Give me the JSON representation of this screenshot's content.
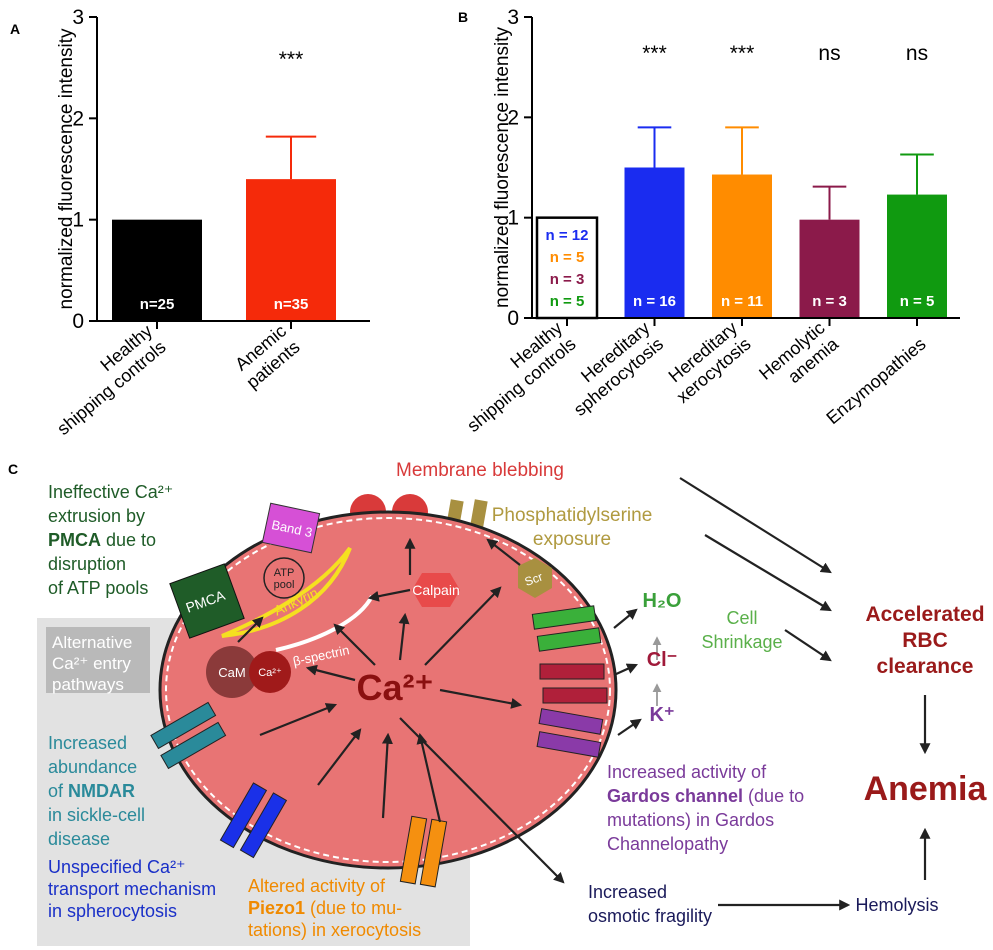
{
  "chart_data": [
    {
      "type": "bar",
      "panel": "A",
      "ylabel": "normalized fluorescence intensity",
      "categories": [
        "Healthy\nshipping controls",
        "Anemic\npatients"
      ],
      "values": [
        1.0,
        1.4
      ],
      "errors": [
        null,
        0.42
      ],
      "colors": [
        "#000000",
        "#f52a0a"
      ],
      "edgecolors": [
        null,
        null
      ],
      "n_labels": [
        "n=25",
        "n=35"
      ],
      "n_label_colors": [
        "#ffffff",
        "#ffffff"
      ],
      "significance": [
        null,
        "***"
      ],
      "ylim": [
        0,
        3
      ],
      "yticks": [
        0,
        1,
        2,
        3
      ]
    },
    {
      "type": "bar",
      "panel": "B",
      "ylabel": "normalized fluorescence intensity",
      "categories": [
        "Healthy\nshipping controls",
        "Hereditary\nspherocytosis",
        "Hereditary\nxerocytosis",
        "Hemolytic\nanemia",
        "Enzymopathies"
      ],
      "values": [
        1.0,
        1.5,
        1.43,
        0.98,
        1.23
      ],
      "errors": [
        null,
        0.4,
        0.47,
        0.33,
        0.4
      ],
      "colors": [
        "#ffffff",
        "#1a2cf0",
        "#ff8c00",
        "#8b1a4a",
        "#109a10"
      ],
      "edgecolors": [
        "#000000",
        null,
        null,
        null,
        null
      ],
      "n_labels": [
        [
          "n = 12",
          "n = 5",
          "n = 3",
          "n = 5"
        ],
        "n = 16",
        "n = 11",
        "n = 3",
        "n = 5"
      ],
      "n_label_colors": [
        [
          "#1a2cf0",
          "#ff8c00",
          "#8b1a4a",
          "#109a10"
        ],
        "#ffffff",
        "#ffffff",
        "#ffffff",
        "#ffffff"
      ],
      "significance": [
        null,
        "***",
        "***",
        "ns",
        "ns"
      ],
      "ylim": [
        0,
        3
      ],
      "yticks": [
        0,
        1,
        2,
        3
      ]
    }
  ],
  "diagram": {
    "texts": {
      "panel": [
        "C"
      ],
      "membrane_blebbing": [
        "Membrane blebbing"
      ],
      "ps_exposure": [
        "Phosphatidylserine",
        "exposure"
      ],
      "pmca_text": [
        "Ineffective Ca²⁺",
        "extrusion by",
        [
          {
            "bold": "PMCA"
          },
          " due to"
        ],
        "disruption",
        "of ATP pools"
      ],
      "alt_entry": [
        "Alternative",
        "Ca²⁺ entry",
        "pathways"
      ],
      "nmdar": [
        "Increased",
        "abundance",
        [
          "of ",
          {
            "bold": "NMDAR"
          }
        ],
        "in sickle-cell",
        "disease"
      ],
      "unspecified": [
        "Unspecified Ca²⁺",
        "transport mechanism",
        "in spherocytosis"
      ],
      "piezo": [
        "Altered activity of",
        [
          {
            "bold": "Piezo1"
          },
          " (due to mu-"
        ],
        "tations) in xerocytosis"
      ],
      "gardos": [
        "Increased activity of",
        [
          {
            "bold": "Gardos channel"
          },
          " (due to"
        ],
        "mutations) in Gardos",
        "Channelopathy"
      ],
      "h2o": [
        "H₂O"
      ],
      "cl": [
        "Cl⁻"
      ],
      "k": [
        "K⁺"
      ],
      "shrinkage": [
        "Cell",
        "Shrinkage"
      ],
      "clearance": [
        "Accelerated",
        "RBC",
        "clearance"
      ],
      "anemia": [
        "Anemia"
      ],
      "hemolysis": [
        "Hemolysis"
      ],
      "fragility": [
        "Increased",
        "osmotic fragility"
      ],
      "ca_main": [
        "Ca²⁺"
      ],
      "pmca_label": [
        "PMCA"
      ],
      "band3": [
        "Band 3"
      ],
      "atp": [
        "ATP",
        "pool"
      ],
      "ankyrin": [
        "Ankyrin"
      ],
      "spectrin": [
        "β-spectrin"
      ],
      "calpain": [
        "Calpain"
      ],
      "cam": [
        "CaM"
      ],
      "ca_small": [
        "Ca²⁺"
      ],
      "scr": [
        "Scr"
      ]
    }
  }
}
